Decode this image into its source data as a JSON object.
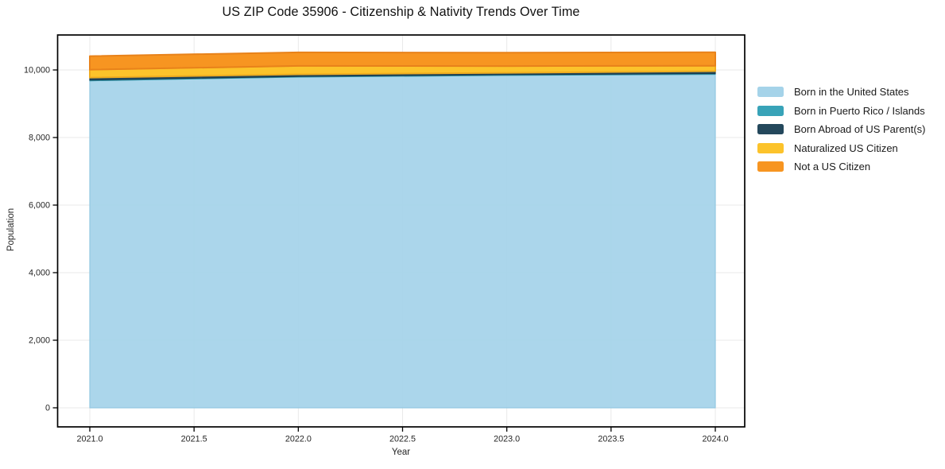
{
  "chart_data": {
    "type": "area",
    "stacked": true,
    "title": "US ZIP Code 35906 - Citizenship & Nativity Trends Over Time",
    "xlabel": "Year",
    "ylabel": "Population",
    "x": [
      2021,
      2022,
      2023,
      2024
    ],
    "series": [
      {
        "name": "Born in the United States",
        "color": "#A5D3E9",
        "edge_color": "#93C8E1",
        "values": [
          9680,
          9790,
          9840,
          9870
        ]
      },
      {
        "name": "Born in Puerto Rico / Islands",
        "color": "#38A3B8",
        "edge_color": "#2F96AA",
        "values": [
          20,
          20,
          20,
          25
        ]
      },
      {
        "name": "Born Abroad of US Parent(s)",
        "color": "#24485C",
        "edge_color": "#1C3B4C",
        "values": [
          75,
          60,
          55,
          70
        ]
      },
      {
        "name": "Naturalized US Citizen",
        "color": "#FCC32B",
        "edge_color": "#EFAC1F",
        "values": [
          235,
          250,
          200,
          160
        ]
      },
      {
        "name": "Not a US Citizen",
        "color": "#F79521",
        "edge_color": "#E8821A",
        "values": [
          400,
          400,
          395,
          400
        ]
      }
    ],
    "totals": [
      10410,
      10520,
      10510,
      10525
    ],
    "xlim": [
      2020.84,
      2024.14
    ],
    "ylim": [
      0,
      11050
    ],
    "grid": true,
    "legend_position": "right-outside",
    "xticks": {
      "values": [
        2021,
        2021.5,
        2022,
        2022.5,
        2023,
        2023.5,
        2024
      ],
      "labels": [
        "2021.0",
        "2021.5",
        "2022.0",
        "2022.5",
        "2023.0",
        "2023.5",
        "2024.0"
      ]
    },
    "yticks": {
      "values": [
        0,
        2000,
        4000,
        6000,
        8000,
        10000
      ],
      "labels": [
        "0",
        "2,000",
        "4,000",
        "6,000",
        "8,000",
        "10,000"
      ]
    }
  },
  "colors": {
    "background": "#FFFFFF",
    "grid": "#E9E9E9",
    "spine": "#000000",
    "tick_text": "#262626",
    "title_text": "#111111"
  }
}
